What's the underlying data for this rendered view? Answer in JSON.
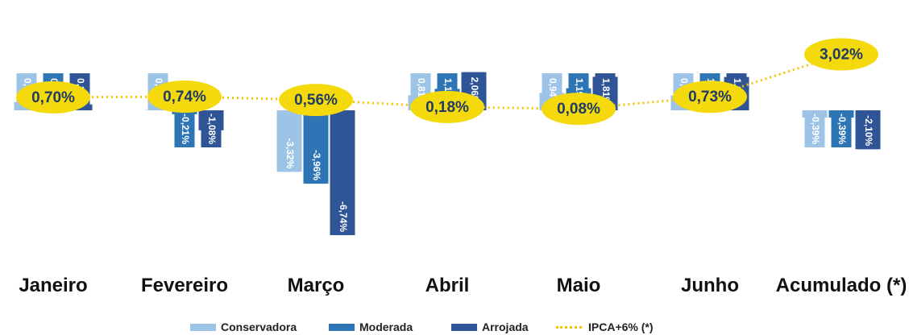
{
  "chart_data": {
    "type": "bar",
    "categories": [
      "Janeiro",
      "Fevereiro",
      "Março",
      "Abril",
      "Maio",
      "Junho",
      "Acumulado (*)"
    ],
    "ylim": [
      -7,
      4
    ],
    "series": [
      {
        "name": "Conservadora",
        "color": "#9dc3e6",
        "values": [
          0.44,
          0.02,
          -3.32,
          0.81,
          0.94,
          0.8,
          -0.39
        ],
        "value_labels": [
          "0,44%",
          "0,02%",
          "-3,32%",
          "0,81%",
          "0,94%",
          "0,80%",
          "-0,39%"
        ]
      },
      {
        "name": "Moderada",
        "color": "#2e75b6",
        "values": [
          0.46,
          -0.21,
          -3.96,
          1.16,
          1.19,
          1.06,
          -0.39
        ],
        "value_labels": [
          "0,46%",
          "-0,21%",
          "-3,96%",
          "1,16%",
          "1,19%",
          "1,06%",
          "-0,39%"
        ]
      },
      {
        "name": "Arrojada",
        "color": "#2f5597",
        "values": [
          0.32,
          -1.08,
          -6.74,
          2.06,
          1.81,
          1.8,
          -2.1
        ],
        "value_labels": [
          "0,32%",
          "-1,08%",
          "-6,74%",
          "2,06%",
          "1,81%",
          "1,80%",
          "-2,10%"
        ]
      },
      {
        "name": "IPCA+6% (*)",
        "type": "line",
        "color": "#f5c400",
        "values": [
          0.7,
          0.74,
          0.56,
          0.18,
          0.08,
          0.73,
          3.02
        ],
        "value_labels": [
          "0,70%",
          "0,74%",
          "0,56%",
          "0,18%",
          "0,08%",
          "0,73%",
          "3,02%"
        ]
      }
    ]
  }
}
